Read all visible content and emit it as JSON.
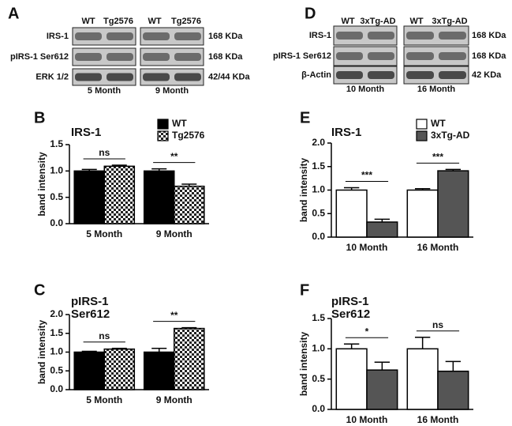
{
  "blots": [
    {
      "label": "A",
      "lanes": [
        "WT",
        "Tg2576",
        "WT",
        "Tg2576"
      ],
      "rows": [
        "IRS-1",
        "pIRS-1 Ser612",
        "ERK 1/2"
      ],
      "sizes": [
        "168 KDa",
        "168 KDa",
        "42/44 KDa"
      ],
      "groups": [
        "5 Month",
        "9 Month"
      ]
    },
    {
      "label": "D",
      "lanes": [
        "WT",
        "3xTg-AD",
        "WT",
        "3xTg-AD"
      ],
      "rows": [
        "IRS-1",
        "pIRS-1 Ser612",
        "β-Actin"
      ],
      "sizes": [
        "168 KDa",
        "168 KDa",
        "42 KDa"
      ],
      "groups": [
        "10 Month",
        "16 Month"
      ]
    }
  ],
  "chart_data": [
    {
      "type": "bar",
      "label": "B",
      "title": [
        "IRS-1"
      ],
      "y_label": "band intensity",
      "categories": [
        "5 Month",
        "9 Month"
      ],
      "series": [
        {
          "name": "WT",
          "color": "#000000",
          "values": [
            1.0,
            1.0
          ],
          "errors": [
            0.03,
            0.04
          ]
        },
        {
          "name": "Tg2576",
          "color": "#ffffff",
          "pattern": "checker",
          "values": [
            1.09,
            0.71
          ],
          "errors": [
            0.02,
            0.04
          ]
        }
      ],
      "annotations": [
        "ns",
        "**"
      ],
      "legend": "top-right",
      "ylim": [
        0,
        1.5
      ],
      "yticks": [
        {
          "value": 0,
          "label": "0.0"
        },
        0.5,
        {
          "value": 1,
          "label": "1.0"
        },
        1.5
      ]
    },
    {
      "type": "bar",
      "label": "C",
      "title": [
        "pIRS-1",
        "Ser612"
      ],
      "y_label": "band intensity",
      "categories": [
        "5 Month",
        "9 Month"
      ],
      "series": [
        {
          "name": "WT",
          "color": "#000000",
          "values": [
            1.0,
            1.0
          ],
          "errors": [
            0.02,
            0.1
          ]
        },
        {
          "name": "Tg2576",
          "color": "#ffffff",
          "pattern": "checker",
          "values": [
            1.08,
            1.63
          ],
          "errors": [
            0.02,
            0.02
          ]
        }
      ],
      "annotations": [
        "ns",
        "**"
      ],
      "ylim": [
        0,
        2
      ],
      "yticks": [
        {
          "value": 0,
          "label": "0.0"
        },
        0.5,
        {
          "value": 1,
          "label": "1.0"
        },
        1.5,
        {
          "value": 2,
          "label": "2.0"
        }
      ]
    },
    {
      "type": "bar",
      "label": "E",
      "title": [
        "IRS-1"
      ],
      "y_label": "band intensity",
      "categories": [
        "10 Month",
        "16 Month"
      ],
      "series": [
        {
          "name": "WT",
          "color": "#ffffff",
          "values": [
            1.0,
            1.0
          ],
          "errors": [
            0.05,
            0.03
          ]
        },
        {
          "name": "3xTg-AD",
          "color": "#555555",
          "values": [
            0.32,
            1.41
          ],
          "errors": [
            0.06,
            0.03
          ]
        }
      ],
      "annotations": [
        "***",
        "***"
      ],
      "legend": "top-right",
      "ylim": [
        0,
        2
      ],
      "yticks": [
        {
          "value": 0,
          "label": "0.0"
        },
        0.5,
        {
          "value": 1,
          "label": "1.0"
        },
        1.5,
        {
          "value": 2,
          "label": "2.0"
        }
      ]
    },
    {
      "type": "bar",
      "label": "F",
      "title": [
        "pIRS-1",
        "Ser612"
      ],
      "y_label": "band intensity",
      "categories": [
        "10 Month",
        "16 Month"
      ],
      "series": [
        {
          "name": "WT",
          "color": "#ffffff",
          "values": [
            1.0,
            1.0
          ],
          "errors": [
            0.08,
            0.19
          ]
        },
        {
          "name": "3xTg-AD",
          "color": "#555555",
          "values": [
            0.65,
            0.63
          ],
          "errors": [
            0.13,
            0.16
          ]
        }
      ],
      "annotations": [
        "*",
        "ns"
      ],
      "ylim": [
        0,
        1.5
      ],
      "yticks": [
        {
          "value": 0,
          "label": "0.0"
        },
        0.5,
        {
          "value": 1,
          "label": "1.0"
        },
        1.5
      ]
    }
  ]
}
